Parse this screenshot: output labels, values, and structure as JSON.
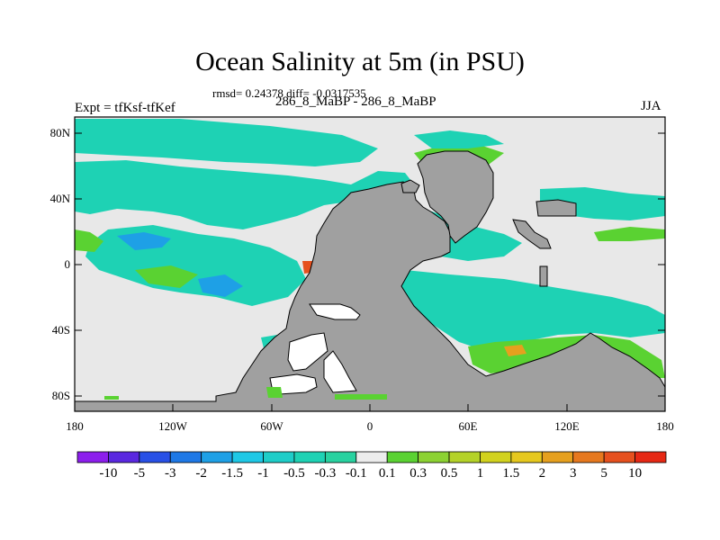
{
  "title": "Ocean Salinity at 5m (in PSU)",
  "subtitle": "rmsd= 0.24378 diff= -0.0317535",
  "left_label": "Expt = tfKsf-tfKef",
  "center_label": "286_8_MaBP - 286_8_MaBP",
  "right_label": "JJA",
  "map": {
    "lon_range": [
      -180,
      180
    ],
    "lat_range": [
      -90,
      90
    ],
    "x_ticks": [
      "180",
      "120W",
      "60W",
      "0",
      "60E",
      "120E",
      "180"
    ],
    "y_ticks": [
      "80N",
      "40N",
      "0",
      "40S",
      "80S"
    ],
    "land_color": "#a0a0a0",
    "ocean_color": "#e8e8e8"
  },
  "colorbar": {
    "labels": [
      "-10",
      "-5",
      "-3",
      "-2",
      "-1.5",
      "-1",
      "-0.5",
      "-0.3",
      "-0.1",
      "0.1",
      "0.3",
      "0.5",
      "1",
      "1.5",
      "2",
      "3",
      "5",
      "10"
    ],
    "colors": [
      "#8c1eec",
      "#5a28e0",
      "#2850e6",
      "#1e78e6",
      "#1ea0e6",
      "#1ec8e6",
      "#1ecdc8",
      "#1ed2b4",
      "#28d2a0",
      "#ececec",
      "#5ad232",
      "#8cd232",
      "#b4d228",
      "#d2d21e",
      "#e6c81e",
      "#e6a01e",
      "#e6781e",
      "#e6501e",
      "#e62814"
    ]
  }
}
